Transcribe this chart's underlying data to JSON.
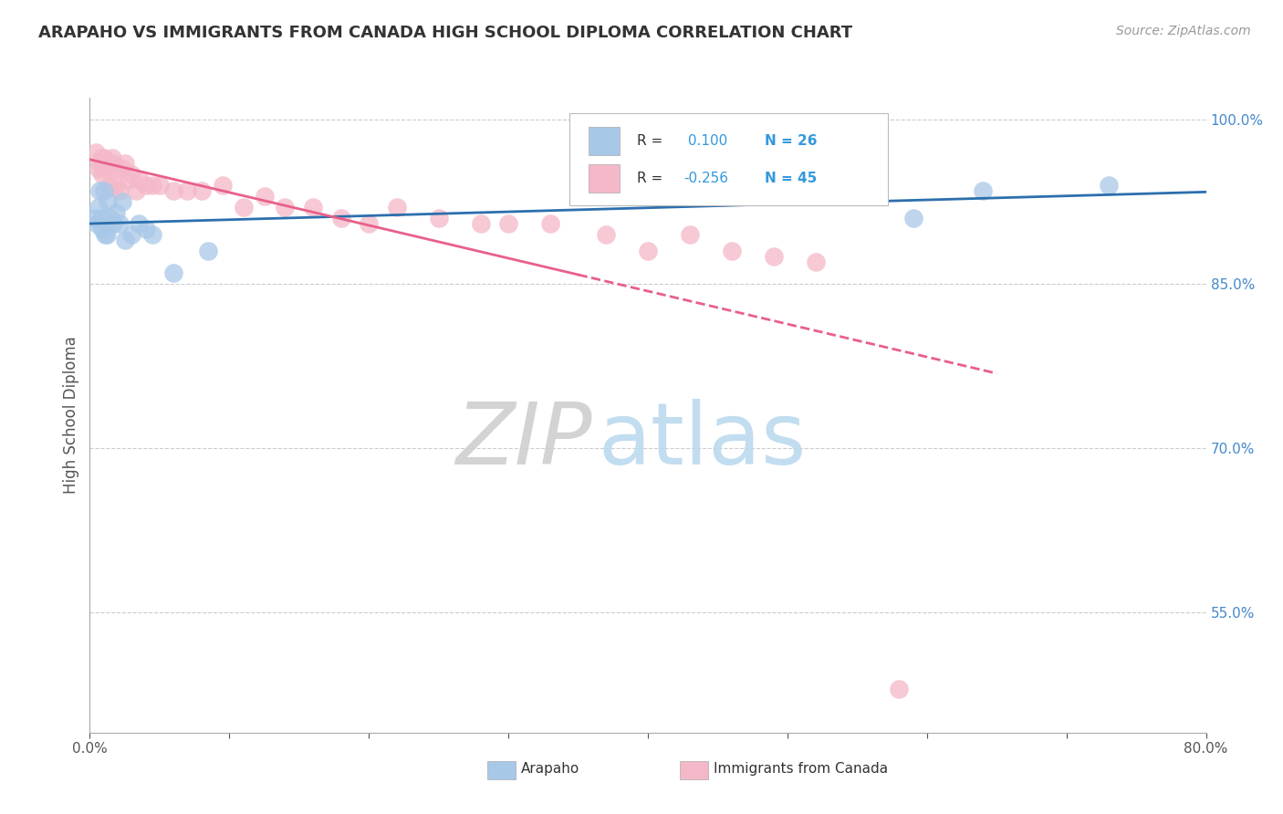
{
  "title": "ARAPAHO VS IMMIGRANTS FROM CANADA HIGH SCHOOL DIPLOMA CORRELATION CHART",
  "source": "Source: ZipAtlas.com",
  "ylabel": "High School Diploma",
  "xlim": [
    0.0,
    0.8
  ],
  "ylim": [
    0.44,
    1.02
  ],
  "xticks": [
    0.0,
    0.1,
    0.2,
    0.3,
    0.4,
    0.5,
    0.6,
    0.7,
    0.8
  ],
  "xticklabels": [
    "0.0%",
    "",
    "",
    "",
    "",
    "",
    "",
    "",
    "80.0%"
  ],
  "yticks": [
    0.55,
    0.7,
    0.85,
    1.0
  ],
  "yticklabels": [
    "55.0%",
    "70.0%",
    "85.0%",
    "100.0%"
  ],
  "R_blue": 0.1,
  "N_blue": 26,
  "R_pink": -0.256,
  "N_pink": 45,
  "blue_color": "#a8c8e8",
  "pink_color": "#f4b8c8",
  "blue_line_color": "#2c6fad",
  "pink_line_color": "#e8608a",
  "watermark_zip": "ZIP",
  "watermark_atlas": "atlas",
  "arapaho_x": [
    0.003,
    0.005,
    0.006,
    0.007,
    0.008,
    0.009,
    0.01,
    0.011,
    0.012,
    0.013,
    0.015,
    0.017,
    0.019,
    0.021,
    0.023,
    0.025,
    0.03,
    0.035,
    0.04,
    0.045,
    0.06,
    0.085,
    0.35,
    0.59,
    0.64,
    0.73
  ],
  "arapaho_y": [
    0.91,
    0.905,
    0.92,
    0.935,
    0.91,
    0.9,
    0.935,
    0.895,
    0.895,
    0.925,
    0.91,
    0.905,
    0.915,
    0.905,
    0.925,
    0.89,
    0.895,
    0.905,
    0.9,
    0.895,
    0.86,
    0.88,
    0.93,
    0.91,
    0.935,
    0.94
  ],
  "canada_x": [
    0.004,
    0.006,
    0.007,
    0.008,
    0.009,
    0.01,
    0.012,
    0.013,
    0.014,
    0.016,
    0.017,
    0.018,
    0.019,
    0.021,
    0.023,
    0.025,
    0.027,
    0.03,
    0.033,
    0.036,
    0.04,
    0.045,
    0.05,
    0.06,
    0.07,
    0.08,
    0.095,
    0.11,
    0.125,
    0.14,
    0.16,
    0.18,
    0.2,
    0.22,
    0.25,
    0.28,
    0.3,
    0.33,
    0.37,
    0.4,
    0.43,
    0.46,
    0.49,
    0.52,
    0.58
  ],
  "canada_y": [
    0.97,
    0.955,
    0.96,
    0.965,
    0.95,
    0.965,
    0.955,
    0.96,
    0.94,
    0.965,
    0.96,
    0.955,
    0.94,
    0.935,
    0.955,
    0.96,
    0.945,
    0.95,
    0.935,
    0.945,
    0.94,
    0.94,
    0.94,
    0.935,
    0.935,
    0.935,
    0.94,
    0.92,
    0.93,
    0.92,
    0.92,
    0.91,
    0.905,
    0.92,
    0.91,
    0.905,
    0.905,
    0.905,
    0.895,
    0.88,
    0.895,
    0.88,
    0.875,
    0.87,
    0.48
  ]
}
